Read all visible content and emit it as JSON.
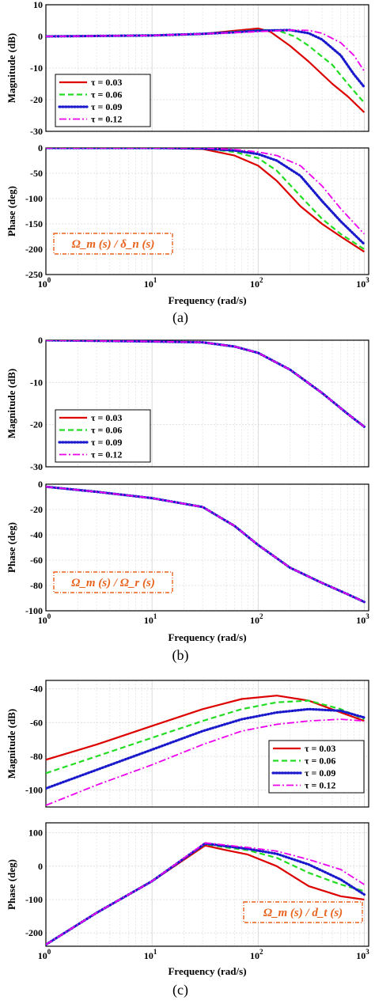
{
  "chart_data": [
    {
      "id": "a",
      "caption": "(a)",
      "xlabel": "Frequency (rad/s)",
      "x_ticks": [
        "10^0",
        "10^1",
        "10^2",
        "10^3"
      ],
      "transfer_label": "Ω_m (s) / δ_n (s)",
      "legend_labels": [
        "τ = 0.03",
        "τ = 0.06",
        "τ = 0.09",
        "τ = 0.12"
      ],
      "magnitude": {
        "type": "line",
        "ylabel": "Magnitude (dB)",
        "ylim": [
          -30,
          10
        ],
        "yticks": [
          10,
          0,
          -10,
          -20,
          -30
        ],
        "grid": true,
        "legend": "bottom-left",
        "series": [
          {
            "name": "τ = 0.03",
            "color": "#dd0000",
            "style": "solid",
            "x": [
              1,
              10,
              30,
              60,
              100,
              130,
              200,
              300,
              500,
              700,
              1000
            ],
            "y": [
              0,
              0.3,
              0.8,
              1.8,
              2.5,
              1.5,
              -3,
              -8,
              -15,
              -19,
              -24
            ]
          },
          {
            "name": "τ = 0.06",
            "color": "#22dd22",
            "style": "dashed",
            "x": [
              1,
              10,
              30,
              60,
              100,
              150,
              220,
              300,
              500,
              700,
              1000
            ],
            "y": [
              0,
              0.3,
              0.8,
              1.5,
              2.0,
              2.0,
              0,
              -3,
              -9,
              -15,
              -21
            ]
          },
          {
            "name": "τ = 0.09",
            "color": "#1a1acc",
            "style": "dotted",
            "x": [
              1,
              10,
              30,
              60,
              100,
              200,
              300,
              400,
              600,
              800,
              1000
            ],
            "y": [
              0,
              0.3,
              0.8,
              1.3,
              1.8,
              2.0,
              1.0,
              -1,
              -6,
              -12,
              -16
            ]
          },
          {
            "name": "τ = 0.12",
            "color": "#ee00ee",
            "style": "dashdot",
            "x": [
              1,
              10,
              30,
              60,
              100,
              200,
              300,
              400,
              600,
              800,
              1000
            ],
            "y": [
              0,
              0.3,
              0.8,
              1.2,
              1.5,
              2.0,
              1.9,
              1.0,
              -2,
              -6,
              -11
            ]
          }
        ]
      },
      "phase": {
        "type": "line",
        "ylabel": "Phase (deg)",
        "ylim": [
          -250,
          0
        ],
        "yticks": [
          0,
          -50,
          -100,
          -150,
          -200,
          -250
        ],
        "grid": true,
        "series": [
          {
            "name": "τ = 0.03",
            "x": [
              1,
              10,
              30,
              60,
              100,
              150,
              250,
              400,
              600,
              1000
            ],
            "y": [
              0,
              0,
              -2,
              -15,
              -35,
              -65,
              -115,
              -150,
              -175,
              -205
            ]
          },
          {
            "name": "τ = 0.06",
            "x": [
              1,
              10,
              30,
              60,
              100,
              150,
              250,
              400,
              600,
              1000
            ],
            "y": [
              0,
              0,
              -1,
              -8,
              -20,
              -45,
              -95,
              -140,
              -170,
              -200
            ]
          },
          {
            "name": "τ = 0.09",
            "x": [
              1,
              10,
              30,
              60,
              100,
              150,
              250,
              400,
              600,
              1000
            ],
            "y": [
              0,
              0,
              -1,
              -5,
              -12,
              -25,
              -55,
              -105,
              -145,
              -190
            ]
          },
          {
            "name": "τ = 0.12",
            "x": [
              1,
              10,
              30,
              60,
              100,
              150,
              250,
              400,
              600,
              1000
            ],
            "y": [
              0,
              0,
              0,
              -3,
              -8,
              -15,
              -35,
              -75,
              -120,
              -170
            ]
          }
        ]
      }
    },
    {
      "id": "b",
      "caption": "(b)",
      "xlabel": "Frequency (rad/s)",
      "x_ticks": [
        "10^0",
        "10^1",
        "10^2",
        "10^3"
      ],
      "transfer_label": "Ω_m (s) / Ω_r (s)",
      "legend_labels": [
        "τ = 0.03",
        "τ = 0.06",
        "τ = 0.09",
        "τ = 0.12"
      ],
      "magnitude": {
        "type": "line",
        "ylabel": "Magnitude (dB)",
        "ylim": [
          -30,
          0
        ],
        "yticks": [
          0,
          -10,
          -20,
          -30
        ],
        "grid": true,
        "legend": "bottom-left",
        "series": [
          {
            "name": "τ = 0.03",
            "x": [
              1,
              10,
              30,
              60,
              100,
              200,
              400,
              700,
              1000
            ],
            "y": [
              0,
              -0.3,
              -0.5,
              -1.5,
              -3,
              -7,
              -12.5,
              -17.5,
              -20.5
            ]
          },
          {
            "name": "τ = 0.06",
            "x": [
              1,
              10,
              30,
              60,
              100,
              200,
              400,
              700,
              1000
            ],
            "y": [
              0,
              -0.3,
              -0.5,
              -1.5,
              -3,
              -7,
              -12.5,
              -17.5,
              -20.5
            ]
          },
          {
            "name": "τ = 0.09",
            "x": [
              1,
              10,
              30,
              60,
              100,
              200,
              400,
              700,
              1000
            ],
            "y": [
              0,
              -0.3,
              -0.5,
              -1.5,
              -3,
              -7,
              -12.5,
              -17.5,
              -20.5
            ]
          },
          {
            "name": "τ = 0.12",
            "x": [
              1,
              10,
              30,
              60,
              100,
              200,
              400,
              700,
              1000
            ],
            "y": [
              0,
              -0.3,
              -0.5,
              -1.5,
              -3,
              -7,
              -12.5,
              -17.5,
              -20.5
            ]
          }
        ]
      },
      "phase": {
        "type": "line",
        "ylabel": "Phase (deg)",
        "ylim": [
          -100,
          0
        ],
        "yticks": [
          0,
          -20,
          -40,
          -60,
          -80,
          -100
        ],
        "grid": true,
        "series": [
          {
            "name": "τ = 0.03",
            "x": [
              1,
              3,
              10,
              30,
              60,
              100,
              200,
              400,
              700,
              1000
            ],
            "y": [
              -2,
              -6,
              -11,
              -18,
              -33,
              -48,
              -66,
              -78,
              -87,
              -93
            ]
          },
          {
            "name": "τ = 0.06",
            "x": [
              1,
              3,
              10,
              30,
              60,
              100,
              200,
              400,
              700,
              1000
            ],
            "y": [
              -2,
              -6,
              -11,
              -18,
              -33,
              -48,
              -66,
              -78,
              -87,
              -93
            ]
          },
          {
            "name": "τ = 0.09",
            "x": [
              1,
              3,
              10,
              30,
              60,
              100,
              200,
              400,
              700,
              1000
            ],
            "y": [
              -2,
              -6,
              -11,
              -18,
              -33,
              -48,
              -66,
              -78,
              -87,
              -93
            ]
          },
          {
            "name": "τ = 0.12",
            "x": [
              1,
              3,
              10,
              30,
              60,
              100,
              200,
              400,
              700,
              1000
            ],
            "y": [
              -2,
              -6,
              -11,
              -18,
              -33,
              -48,
              -66,
              -78,
              -87,
              -93
            ]
          }
        ]
      }
    },
    {
      "id": "c",
      "caption": "(c)",
      "xlabel": "Frequency (rad/s)",
      "x_ticks": [
        "10^0",
        "10^1",
        "10^2",
        "10^3"
      ],
      "transfer_label": "Ω_m (s) / d_t (s)",
      "legend_labels": [
        "τ = 0.03",
        "τ = 0.06",
        "τ = 0.09",
        "τ = 0.12"
      ],
      "magnitude": {
        "type": "line",
        "ylabel": "Magnitude (dB)",
        "ylim": [
          -110,
          -35
        ],
        "yticks": [
          -40,
          -60,
          -80,
          -100
        ],
        "grid": true,
        "legend": "middle-right",
        "series": [
          {
            "name": "τ = 0.03",
            "x": [
              1,
              3,
              10,
              30,
              70,
              150,
              300,
              600,
              1000
            ],
            "y": [
              -82,
              -73,
              -62,
              -52,
              -46,
              -44,
              -47,
              -54,
              -59
            ]
          },
          {
            "name": "τ = 0.06",
            "x": [
              1,
              3,
              10,
              30,
              70,
              150,
              300,
              600,
              1000
            ],
            "y": [
              -90,
              -80,
              -69,
              -59,
              -52,
              -48,
              -47,
              -52,
              -58
            ]
          },
          {
            "name": "τ = 0.09",
            "x": [
              1,
              3,
              10,
              30,
              70,
              150,
              300,
              600,
              1000
            ],
            "y": [
              -99,
              -88,
              -76,
              -65,
              -58,
              -54,
              -52,
              -53,
              -57
            ]
          },
          {
            "name": "τ = 0.12",
            "x": [
              1,
              3,
              10,
              30,
              70,
              150,
              300,
              600,
              1000
            ],
            "y": [
              -109,
              -97,
              -85,
              -73,
              -65,
              -61,
              -59,
              -58,
              -59
            ]
          }
        ]
      },
      "phase": {
        "type": "line",
        "ylabel": "Phase (deg)",
        "ylim": [
          -240,
          130
        ],
        "yticks": [
          100,
          0,
          -100,
          -200
        ],
        "grid": true,
        "series": [
          {
            "name": "τ = 0.03",
            "x": [
              1,
              3,
              10,
              31.6,
              50,
              80,
              150,
              300,
              600,
              1000
            ],
            "y": [
              -235,
              -140,
              -45,
              62,
              48,
              35,
              0,
              -60,
              -90,
              -100
            ]
          },
          {
            "name": "τ = 0.06",
            "x": [
              1,
              3,
              10,
              31.6,
              50,
              80,
              150,
              300,
              600,
              1000
            ],
            "y": [
              -235,
              -140,
              -45,
              66,
              56,
              48,
              25,
              -20,
              -55,
              -75
            ]
          },
          {
            "name": "τ = 0.09",
            "x": [
              1,
              3,
              10,
              31.6,
              50,
              80,
              150,
              300,
              600,
              1000
            ],
            "y": [
              -235,
              -140,
              -45,
              68,
              60,
              52,
              37,
              5,
              -40,
              -85
            ]
          },
          {
            "name": "τ = 0.12",
            "x": [
              1,
              3,
              10,
              31.6,
              50,
              80,
              150,
              300,
              600,
              1000
            ],
            "y": [
              -235,
              -140,
              -45,
              70,
              63,
              56,
              45,
              20,
              -10,
              -55
            ]
          }
        ]
      }
    }
  ]
}
